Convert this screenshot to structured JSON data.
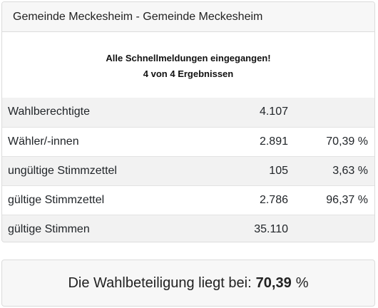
{
  "header": {
    "title": "Gemeinde Meckesheim - Gemeinde Meckesheim"
  },
  "notice": {
    "line1": "Alle Schnellmeldungen eingegangen!",
    "line2": "4 von 4 Ergebnissen"
  },
  "rows": [
    {
      "label": "Wahlberechtigte",
      "count": "4.107",
      "percent": ""
    },
    {
      "label": "Wähler/-innen",
      "count": "2.891",
      "percent": "70,39 %"
    },
    {
      "label": "ungültige Stimmzettel",
      "count": "105",
      "percent": "3,63 %"
    },
    {
      "label": "gültige Stimmzettel",
      "count": "2.786",
      "percent": "96,37 %"
    },
    {
      "label": "gültige Stimmen",
      "count": "35.110",
      "percent": ""
    }
  ],
  "summary": {
    "text": "Die Wahlbeteiligung liegt bei:",
    "value": "70,39",
    "unit": "%"
  }
}
